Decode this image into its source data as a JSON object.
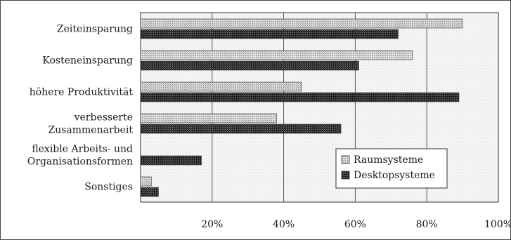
{
  "chart_data": {
    "type": "bar",
    "orientation": "horizontal",
    "categories": [
      [
        "Zeiteinsparung"
      ],
      [
        "Kosteneinsparung"
      ],
      [
        "höhere Produktivität"
      ],
      [
        "verbesserte",
        "Zusammenarbeit"
      ],
      [
        "flexible Arbeits- und",
        "Organisationsformen"
      ],
      [
        "Sonstiges"
      ]
    ],
    "series": [
      {
        "name": "Raumsysteme",
        "values": [
          90,
          76,
          45,
          38,
          0,
          3
        ],
        "color": "#c8c8c8",
        "pattern": "light-stipple"
      },
      {
        "name": "Desktopsysteme",
        "values": [
          72,
          61,
          89,
          56,
          17,
          5
        ],
        "color": "#3a3a3a",
        "pattern": "dark-stipple"
      }
    ],
    "xlim": [
      0,
      100
    ],
    "xticks": [
      0,
      20,
      40,
      60,
      80,
      100
    ],
    "xtick_labels": [
      "",
      "20%",
      "40%",
      "60%",
      "80%",
      "100%"
    ],
    "grid": "vertical",
    "legend_position": "lower-right",
    "title": "",
    "xlabel": "",
    "ylabel": ""
  }
}
